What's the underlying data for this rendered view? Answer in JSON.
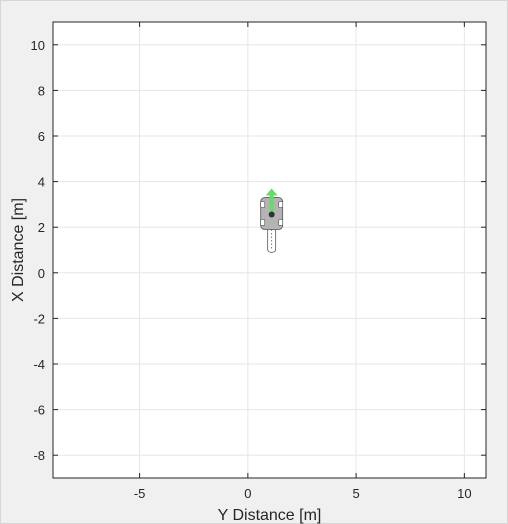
{
  "chart_data": {
    "type": "scatter",
    "title": "",
    "xlabel": "Y Distance [m]",
    "ylabel": "X Distance [m]",
    "xlim": [
      -9,
      11
    ],
    "ylim": [
      -9,
      11
    ],
    "x_ticks": [
      -5,
      0,
      5,
      10
    ],
    "y_ticks": [
      -8,
      -6,
      -4,
      -2,
      0,
      2,
      4,
      6,
      8,
      10
    ],
    "grid": true,
    "ego_vehicle": {
      "center_y": 1.1,
      "center_x": 2.6,
      "heading_arrow_tip_x": 3.7,
      "trailer_rear_x": 0.9
    },
    "colors": {
      "background": "#ffffff",
      "figure": "#f0f0f0",
      "grid": "#e6e6e6",
      "axis": "#262626",
      "vehicle_body": "#b4b4b4",
      "vehicle_outline": "#555555",
      "heading_arrow": "#6ad86a"
    }
  }
}
